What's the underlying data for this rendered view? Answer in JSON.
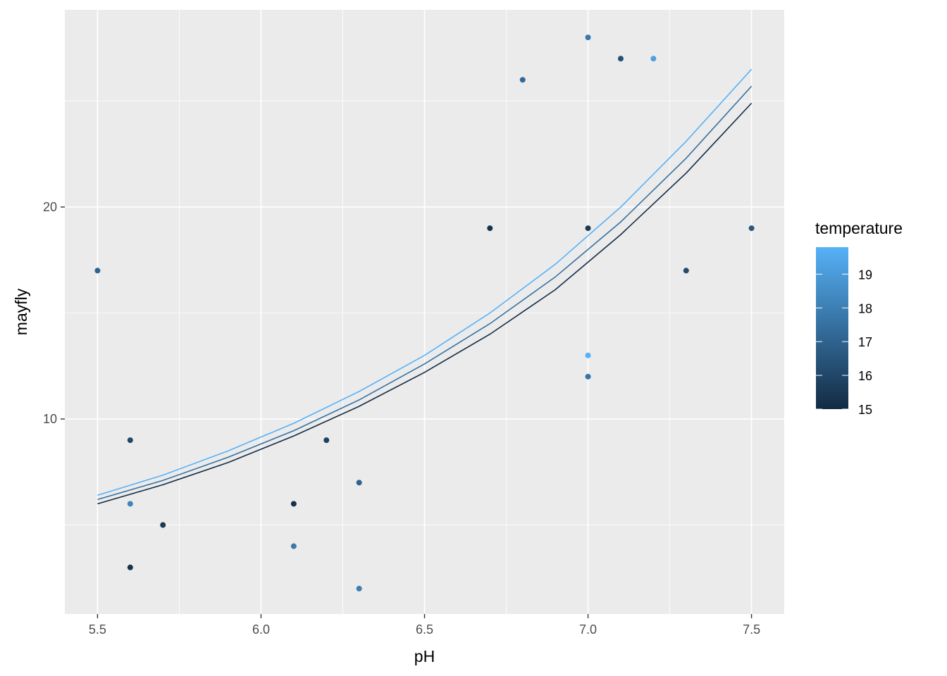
{
  "chart_data": {
    "type": "scatter",
    "title": "",
    "xlabel": "pH",
    "ylabel": "mayfly",
    "xlim": [
      5.4,
      7.6
    ],
    "ylim": [
      0.8,
      29.3
    ],
    "x_ticks": [
      5.5,
      6.0,
      6.5,
      7.0,
      7.5
    ],
    "x_tick_labels": [
      "5.5",
      "6.0",
      "6.5",
      "7.0",
      "7.5"
    ],
    "y_ticks": [
      10,
      20
    ],
    "y_tick_labels": [
      "10",
      "20"
    ],
    "grid": true,
    "points": [
      {
        "x": 5.5,
        "y": 17,
        "temperature": 17.0
      },
      {
        "x": 5.6,
        "y": 9,
        "temperature": 16.0
      },
      {
        "x": 5.6,
        "y": 6,
        "temperature": 18.2
      },
      {
        "x": 5.6,
        "y": 3,
        "temperature": 15.3
      },
      {
        "x": 5.7,
        "y": 5,
        "temperature": 15.5
      },
      {
        "x": 6.1,
        "y": 6,
        "temperature": 15.2
      },
      {
        "x": 6.1,
        "y": 4,
        "temperature": 17.8
      },
      {
        "x": 6.2,
        "y": 9,
        "temperature": 15.8
      },
      {
        "x": 6.3,
        "y": 7,
        "temperature": 17.0
      },
      {
        "x": 6.3,
        "y": 2,
        "temperature": 18.0
      },
      {
        "x": 6.7,
        "y": 19,
        "temperature": 15.2
      },
      {
        "x": 6.8,
        "y": 26,
        "temperature": 17.2
      },
      {
        "x": 7.0,
        "y": 28,
        "temperature": 17.8
      },
      {
        "x": 7.0,
        "y": 19,
        "temperature": 15.6
      },
      {
        "x": 7.0,
        "y": 13,
        "temperature": 19.8
      },
      {
        "x": 7.0,
        "y": 12,
        "temperature": 17.6
      },
      {
        "x": 7.1,
        "y": 27,
        "temperature": 16.3
      },
      {
        "x": 7.2,
        "y": 27,
        "temperature": 19.2
      },
      {
        "x": 7.3,
        "y": 17,
        "temperature": 16.2
      },
      {
        "x": 7.5,
        "y": 19,
        "temperature": 16.6
      }
    ],
    "series": [
      {
        "temperature": 15,
        "x": [
          5.5,
          5.7,
          5.9,
          6.1,
          6.3,
          6.5,
          6.7,
          6.9,
          7.1,
          7.3,
          7.5
        ],
        "y": [
          6.0,
          6.9,
          7.95,
          9.2,
          10.6,
          12.2,
          14.0,
          16.1,
          18.7,
          21.6,
          24.9
        ]
      },
      {
        "temperature": 17.5,
        "x": [
          5.5,
          5.7,
          5.9,
          6.1,
          6.3,
          6.5,
          6.7,
          6.9,
          7.1,
          7.3,
          7.5
        ],
        "y": [
          6.2,
          7.1,
          8.2,
          9.45,
          10.9,
          12.6,
          14.5,
          16.7,
          19.3,
          22.3,
          25.7
        ]
      },
      {
        "temperature": 20,
        "x": [
          5.5,
          5.7,
          5.9,
          6.1,
          6.3,
          6.5,
          6.7,
          6.9,
          7.1,
          7.3,
          7.5
        ],
        "y": [
          6.4,
          7.35,
          8.5,
          9.8,
          11.3,
          13.0,
          15.0,
          17.3,
          20.0,
          23.1,
          26.5
        ]
      }
    ],
    "legend": {
      "title": "temperature",
      "placement": "right",
      "min": 15,
      "max": 19.8,
      "breaks": [
        15,
        16,
        17,
        18,
        19
      ],
      "break_labels": [
        "15",
        "16",
        "17",
        "18",
        "19"
      ],
      "color_low": "#132B43",
      "color_high": "#56B1F7"
    },
    "colors": {
      "panel_background": "#EBEBEB",
      "grid_line": "#FFFFFF",
      "tick_text": "#4D4D4D"
    }
  }
}
